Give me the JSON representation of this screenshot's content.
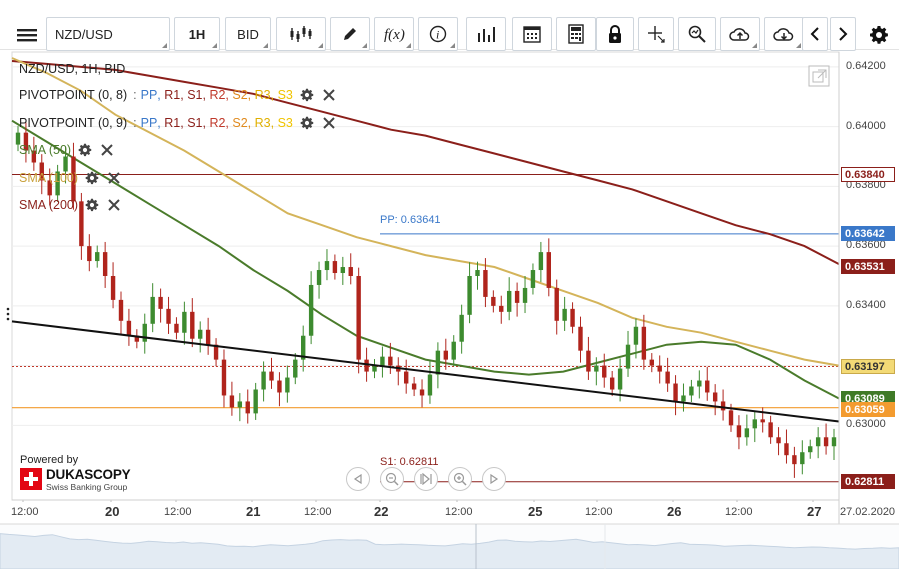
{
  "toolbar": {
    "symbol_value": "NZD/USD",
    "timeframe": "1H",
    "price_type": "BID",
    "icons": [
      "menu-icon",
      "candles-icon",
      "pencil-icon",
      "fx-icon",
      "info-icon",
      "bars-icon",
      "calendar-icon",
      "calculator-icon",
      "lock-icon",
      "crosshair-icon",
      "zoom-icon",
      "upload-cloud-icon",
      "download-cloud-icon",
      "chevron-left-icon",
      "chevron-right-icon",
      "gear-icon"
    ]
  },
  "legend": {
    "title": "NZD/USD, 1H, BID",
    "pivots": [
      {
        "label": "PIVOTPOINT (0, 8)",
        "levels": [
          ":",
          "PP",
          "R1",
          "S1",
          "R2",
          "S2",
          "R3",
          "S3"
        ]
      },
      {
        "label": "PIVOTPOINT (0, 9)",
        "levels": [
          ":",
          "PP",
          "R1",
          "S1",
          "R2",
          "S2",
          "R3",
          "S3"
        ]
      }
    ],
    "smas": [
      {
        "label": "SMA (50)",
        "color": "#4a7b2b"
      },
      {
        "label": "SMA (100)",
        "color": "#d4b45a"
      },
      {
        "label": "SMA (200)",
        "color": "#8b1f1a"
      }
    ]
  },
  "annotations": {
    "pp_label": "PP: 0.63641",
    "s1_label": "S1: 0.62811"
  },
  "price_tags": [
    {
      "text": "0.63840",
      "bg": "#ffffff",
      "fg": "#8b1f1a",
      "border": "#8b1f1a",
      "y": 0.6384
    },
    {
      "text": "0.63642",
      "bg": "#3a78c9",
      "fg": "#ffffff",
      "border": "#3a78c9",
      "y": 0.63642
    },
    {
      "text": "0.63531",
      "bg": "#8b1f1a",
      "fg": "#ffffff",
      "border": "#8b1f1a",
      "y": 0.63531
    },
    {
      "text": "0.63197",
      "bg": "#f3da76",
      "fg": "#333333",
      "border": "#c9a94a",
      "y": 0.63197
    },
    {
      "text": "0.63089",
      "bg": "#3f7a27",
      "fg": "#ffffff",
      "border": "#3f7a27",
      "y": 0.63089
    },
    {
      "text": "0.63059",
      "bg": "#f39b2f",
      "fg": "#ffffff",
      "border": "#f39b2f",
      "y": 0.63059
    },
    {
      "text": "0.62811",
      "bg": "#8b1f1a",
      "fg": "#ffffff",
      "border": "#8b1f1a",
      "y": 0.62811
    }
  ],
  "branding": {
    "powered": "Powered by",
    "brand": "DUKASCOPY",
    "sub": "Swiss Banking Group"
  },
  "chart_data": {
    "type": "candlestick",
    "title": "NZD/USD, 1H, BID",
    "y_ticks": [
      0.642,
      0.64,
      0.638,
      0.636,
      0.634,
      0.632,
      0.63
    ],
    "y_tick_labels": [
      "0.64200",
      "0.64000",
      "0.63800",
      "0.63600",
      "0.63400",
      "",
      "0.63000"
    ],
    "ylim": [
      0.6275,
      0.6425
    ],
    "x_ticks": [
      {
        "label": "12:00",
        "big": false,
        "pos": 0
      },
      {
        "label": "20",
        "big": true,
        "pos": 0.1
      },
      {
        "label": "12:00",
        "big": false,
        "pos": 0.2
      },
      {
        "label": "21",
        "big": true,
        "pos": 0.3
      },
      {
        "label": "12:00",
        "big": false,
        "pos": 0.4
      },
      {
        "label": "22",
        "big": true,
        "pos": 0.5
      },
      {
        "label": "12:00",
        "big": false,
        "pos": 0.6
      },
      {
        "label": "25",
        "big": true,
        "pos": 0.7
      },
      {
        "label": "12:00",
        "big": false,
        "pos": 0.8
      },
      {
        "label": "26",
        "big": true,
        "pos": 0.9
      },
      {
        "label": "12:00",
        "big": false,
        "pos": 1.0
      },
      {
        "label": "27",
        "big": true,
        "pos": 1.1
      },
      {
        "label": "27.02.2020",
        "big": false,
        "pos": 1.2
      }
    ],
    "levels": {
      "pivot_s1": 0.62811,
      "pivot_pp": 0.63641,
      "red_resistance": 0.6384,
      "dashed_red": 0.63197,
      "orange": 0.63059
    },
    "trendline": [
      0.63348,
      0.63013
    ],
    "sma50": [
      0.6402,
      0.6395,
      0.6388,
      0.6381,
      0.6374,
      0.6367,
      0.636,
      0.6352,
      0.6345,
      0.6337,
      0.633,
      0.6326,
      0.6322,
      0.632,
      0.6318,
      0.6317,
      0.6318,
      0.6321,
      0.6324,
      0.6327,
      0.6328,
      0.6327,
      0.6322,
      0.6315,
      0.6309
    ],
    "sma100": [
      0.6423,
      0.6418,
      0.6412,
      0.6404,
      0.6398,
      0.6392,
      0.6385,
      0.6378,
      0.6371,
      0.6367,
      0.6363,
      0.636,
      0.6357,
      0.6355,
      0.6353,
      0.6349,
      0.6345,
      0.6341,
      0.6336,
      0.6333,
      0.6331,
      0.6328,
      0.6325,
      0.6322,
      0.632
    ],
    "sma200": [
      0.6422,
      0.6421,
      0.642,
      0.6419,
      0.6417,
      0.6415,
      0.6413,
      0.6411,
      0.6408,
      0.6405,
      0.6402,
      0.6399,
      0.6397,
      0.6394,
      0.6391,
      0.6388,
      0.6385,
      0.6382,
      0.6379,
      0.6375,
      0.6371,
      0.6367,
      0.6364,
      0.636,
      0.6354
    ],
    "candles_close": [
      0.6398,
      0.6392,
      0.6388,
      0.6382,
      0.6377,
      0.6385,
      0.639,
      0.6375,
      0.636,
      0.6355,
      0.6358,
      0.635,
      0.6342,
      0.6335,
      0.633,
      0.6328,
      0.6334,
      0.6343,
      0.6339,
      0.6334,
      0.6331,
      0.6338,
      0.6329,
      0.6332,
      0.6327,
      0.6322,
      0.631,
      0.6306,
      0.6308,
      0.6304,
      0.6312,
      0.6318,
      0.6315,
      0.6311,
      0.6316,
      0.6322,
      0.633,
      0.6347,
      0.6352,
      0.6355,
      0.6351,
      0.6353,
      0.635,
      0.6322,
      0.6318,
      0.632,
      0.6323,
      0.632,
      0.6318,
      0.6314,
      0.6312,
      0.631,
      0.6317,
      0.6325,
      0.6322,
      0.6328,
      0.6337,
      0.635,
      0.6352,
      0.6343,
      0.634,
      0.6338,
      0.6345,
      0.6341,
      0.6346,
      0.6352,
      0.6358,
      0.6346,
      0.6335,
      0.6339,
      0.6333,
      0.6325,
      0.6318,
      0.632,
      0.6316,
      0.6312,
      0.6319,
      0.6327,
      0.6333,
      0.6322,
      0.632,
      0.6318,
      0.6314,
      0.6308,
      0.631,
      0.6313,
      0.6315,
      0.6311,
      0.6308,
      0.6305,
      0.63,
      0.6296,
      0.6299,
      0.6302,
      0.6301,
      0.6296,
      0.6294,
      0.629,
      0.6287,
      0.6291,
      0.6293,
      0.6296,
      0.6293,
      0.6296
    ]
  }
}
